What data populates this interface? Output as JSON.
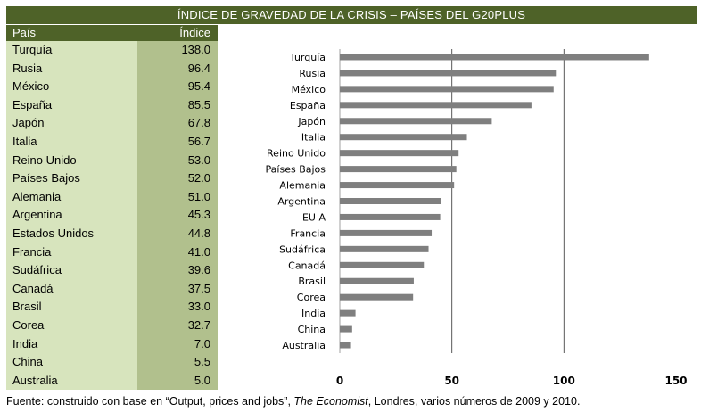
{
  "title": "ÍNDICE DE GRAVEDAD DE LA CRISIS – PAÍSES DEL G20PLUS",
  "table": {
    "header_country": "País",
    "header_index": "Índice",
    "rows": [
      {
        "country": "Turquía",
        "value": "138.0"
      },
      {
        "country": "Rusia",
        "value": "96.4"
      },
      {
        "country": "México",
        "value": "95.4"
      },
      {
        "country": "España",
        "value": "85.5"
      },
      {
        "country": "Japón",
        "value": "67.8"
      },
      {
        "country": "Italia",
        "value": "56.7"
      },
      {
        "country": "Reino Unido",
        "value": "53.0"
      },
      {
        "country": "Países Bajos",
        "value": "52.0"
      },
      {
        "country": "Alemania",
        "value": "51.0"
      },
      {
        "country": "Argentina",
        "value": "45.3"
      },
      {
        "country": "Estados Unidos",
        "value": "44.8"
      },
      {
        "country": "Francia",
        "value": "41.0"
      },
      {
        "country": "Sudáfrica",
        "value": "39.6"
      },
      {
        "country": "Canadá",
        "value": "37.5"
      },
      {
        "country": "Brasil",
        "value": "33.0"
      },
      {
        "country": "Corea",
        "value": "32.7"
      },
      {
        "country": "India",
        "value": "7.0"
      },
      {
        "country": "China",
        "value": "5.5"
      },
      {
        "country": "Australia",
        "value": "5.0"
      }
    ]
  },
  "chart_data": {
    "type": "bar",
    "orientation": "horizontal",
    "categories": [
      "Turquía",
      "Rusia",
      "México",
      "España",
      "Japón",
      "Italia",
      "Reino Unido",
      "Países Bajos",
      "Alemania",
      "Argentina",
      "EU A",
      "Francia",
      "Sudáfrica",
      "Canadá",
      "Brasil",
      "Corea",
      "India",
      "China",
      "Australia"
    ],
    "values": [
      138.0,
      96.4,
      95.4,
      85.5,
      67.8,
      56.7,
      53.0,
      52.0,
      51.0,
      45.3,
      44.8,
      41.0,
      39.6,
      37.5,
      33.0,
      32.7,
      7.0,
      5.5,
      5.0
    ],
    "x_ticks": [
      "0",
      "50",
      "100",
      "150"
    ],
    "xlim": [
      0,
      150
    ],
    "grid": true,
    "bar_color": "#7f7f7f",
    "grid_color": "#595959"
  },
  "colors": {
    "header_bg": "#4e6228",
    "country_col_bg": "#d7e4bd",
    "index_col_bg": "#b1c08d"
  },
  "footer": {
    "prefix": "Fuente: construido con base en “Output, prices and jobs”, ",
    "source": "The Economist",
    "suffix": ", Londres, varios números de 2009 y 2010."
  }
}
